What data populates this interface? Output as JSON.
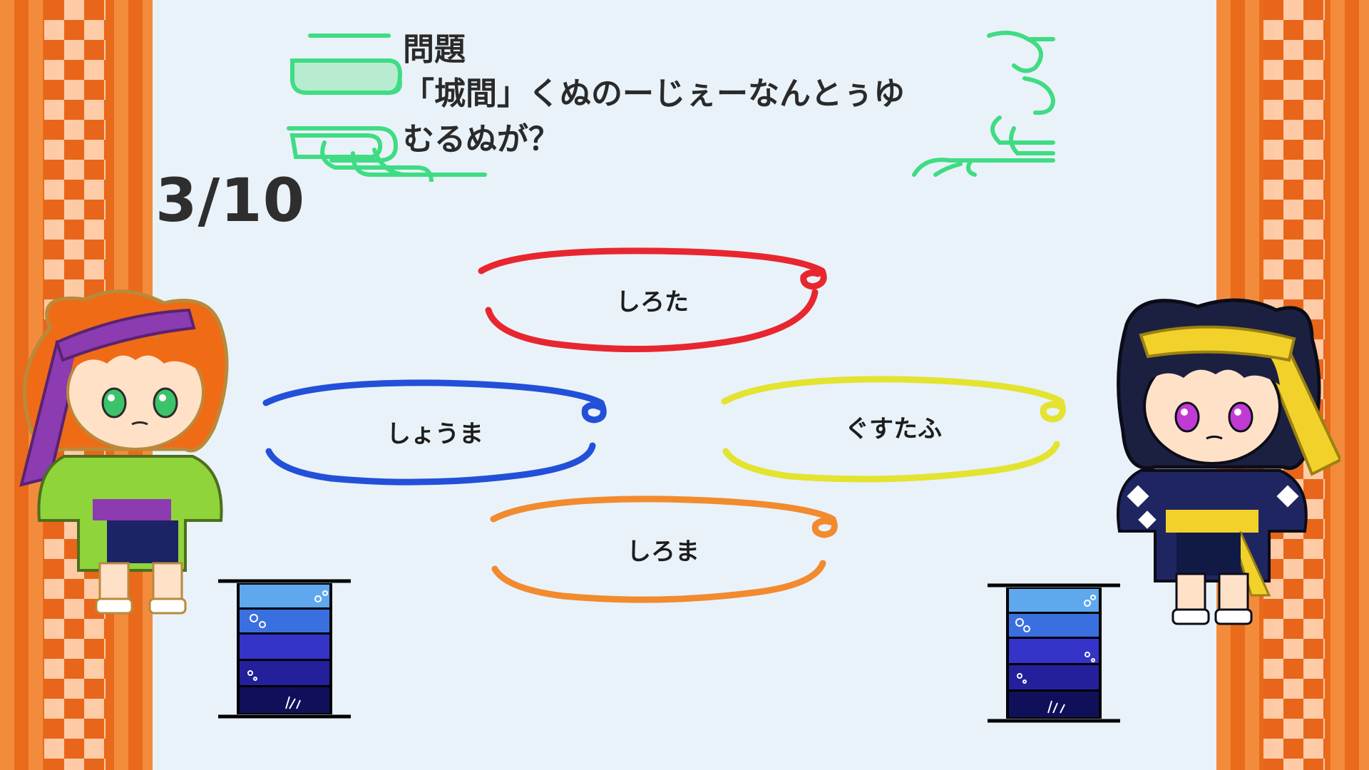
{
  "question": {
    "label": "問題",
    "text": "「城間」くぬのーじぇーなんとぅゆ\nむるぬが？"
  },
  "progress": {
    "text": "3/10",
    "current": 3,
    "total": 10
  },
  "choices": [
    {
      "label": "しろた",
      "color": "#e8262f"
    },
    {
      "label": "しょうま",
      "color": "#2350d8"
    },
    {
      "label": "ぐすたふ",
      "color": "#e3e330"
    },
    {
      "label": "しろま",
      "color": "#f28a2e"
    }
  ],
  "players": {
    "left": {
      "icon": "orange-haired-player-character",
      "accent": "#8fd43a",
      "headband": "#8c3bb0"
    },
    "right": {
      "icon": "dark-haired-player-character",
      "accent": "#1f2560",
      "headband": "#f2d12a"
    }
  },
  "gauges": {
    "left": {
      "levels": 5
    },
    "right": {
      "levels": 5
    }
  },
  "colors": {
    "background": "#e9f2f8",
    "border_orange": "#e96a1a",
    "border_light": "#ffd0ad",
    "deco_green": "#3fdc84"
  }
}
